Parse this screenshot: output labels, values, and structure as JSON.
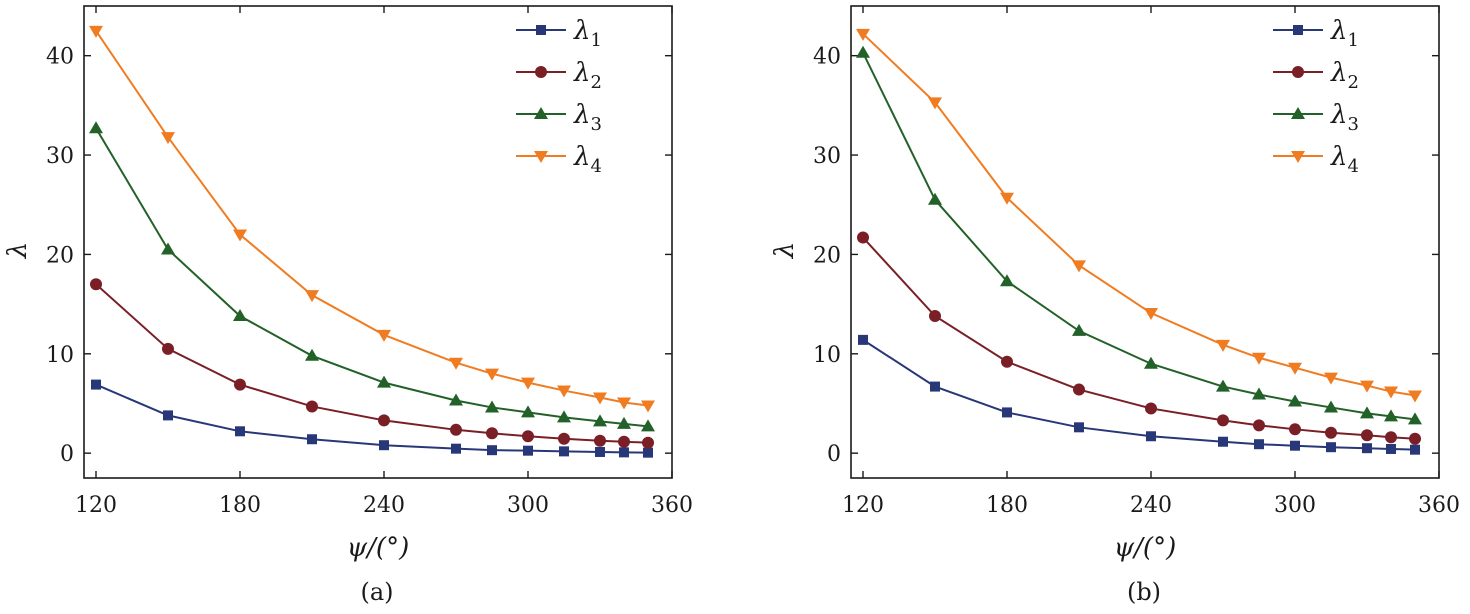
{
  "chart_data": [
    {
      "type": "line",
      "caption": "(a)",
      "xlabel": "ψ/(°)",
      "ylabel": "λ",
      "xlim": [
        115,
        360
      ],
      "ylim": [
        -2.5,
        45
      ],
      "xticks": [
        120,
        180,
        240,
        300,
        360
      ],
      "yticks": [
        0,
        10,
        20,
        30,
        40
      ],
      "grid": false,
      "legend_position": "top-right",
      "x": [
        120,
        150,
        180,
        210,
        240,
        270,
        285,
        300,
        315,
        330,
        340,
        350
      ],
      "series": [
        {
          "name": "λ1",
          "color": "#283778",
          "marker": "square",
          "values": [
            6.9,
            3.8,
            2.2,
            1.4,
            0.8,
            0.45,
            0.3,
            0.25,
            0.18,
            0.12,
            0.08,
            0.05
          ]
        },
        {
          "name": "λ2",
          "color": "#7a1f26",
          "marker": "circle",
          "values": [
            17.0,
            10.5,
            6.9,
            4.7,
            3.3,
            2.35,
            2.0,
            1.7,
            1.45,
            1.25,
            1.15,
            1.05
          ]
        },
        {
          "name": "λ3",
          "color": "#226128",
          "marker": "triangle-up",
          "values": [
            32.7,
            20.5,
            13.8,
            9.8,
            7.1,
            5.3,
            4.6,
            4.1,
            3.6,
            3.2,
            2.95,
            2.7
          ]
        },
        {
          "name": "λ4",
          "color": "#f07c22",
          "marker": "triangle-down",
          "values": [
            42.5,
            31.8,
            22.0,
            15.9,
            11.9,
            9.1,
            8.0,
            7.1,
            6.3,
            5.6,
            5.1,
            4.8
          ]
        }
      ]
    },
    {
      "type": "line",
      "caption": "(b)",
      "xlabel": "ψ/(°)",
      "ylabel": "λ",
      "xlim": [
        115,
        360
      ],
      "ylim": [
        -2.5,
        45
      ],
      "xticks": [
        120,
        180,
        240,
        300,
        360
      ],
      "yticks": [
        0,
        10,
        20,
        30,
        40
      ],
      "grid": false,
      "legend_position": "top-right",
      "x": [
        120,
        150,
        180,
        210,
        240,
        270,
        285,
        300,
        315,
        330,
        340,
        350
      ],
      "series": [
        {
          "name": "λ1",
          "color": "#283778",
          "marker": "square",
          "values": [
            11.4,
            6.7,
            4.1,
            2.6,
            1.7,
            1.15,
            0.9,
            0.75,
            0.6,
            0.5,
            0.42,
            0.35
          ]
        },
        {
          "name": "λ2",
          "color": "#7a1f26",
          "marker": "circle",
          "values": [
            21.7,
            13.8,
            9.2,
            6.4,
            4.5,
            3.3,
            2.8,
            2.4,
            2.05,
            1.8,
            1.6,
            1.45
          ]
        },
        {
          "name": "λ3",
          "color": "#226128",
          "marker": "triangle-up",
          "values": [
            40.3,
            25.5,
            17.3,
            12.3,
            9.0,
            6.7,
            5.9,
            5.2,
            4.6,
            4.0,
            3.7,
            3.4
          ]
        },
        {
          "name": "λ4",
          "color": "#f07c22",
          "marker": "triangle-down",
          "values": [
            42.2,
            35.3,
            25.7,
            18.9,
            14.1,
            10.9,
            9.6,
            8.6,
            7.6,
            6.8,
            6.2,
            5.8
          ]
        }
      ]
    }
  ]
}
